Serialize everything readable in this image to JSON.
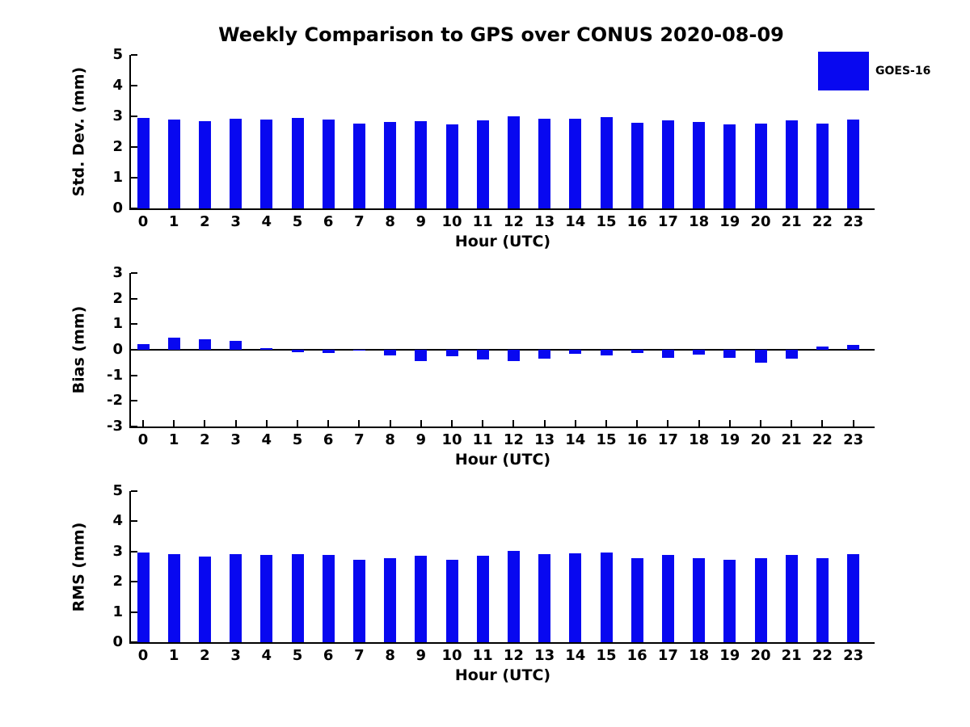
{
  "title": "Weekly Comparison to GPS over CONUS 2020-08-09",
  "legend": {
    "label": "GOES-16",
    "color": "#0808f0"
  },
  "colors": {
    "bar": "#0808f0",
    "axis": "#000000",
    "text": "#000000",
    "background": "#ffffff"
  },
  "chart_data": [
    {
      "type": "bar",
      "ylabel": "Std. Dev. (mm)",
      "xlabel": "Hour (UTC)",
      "ylim": [
        0,
        5
      ],
      "yticks": [
        0,
        1,
        2,
        3,
        4,
        5
      ],
      "grid": false,
      "legend_entries": [
        "GOES-16"
      ],
      "legend_position": "upper right outside plot",
      "categories": [
        "0",
        "1",
        "2",
        "3",
        "4",
        "5",
        "6",
        "7",
        "8",
        "9",
        "10",
        "11",
        "12",
        "13",
        "14",
        "15",
        "16",
        "17",
        "18",
        "19",
        "20",
        "21",
        "22",
        "23"
      ],
      "values": [
        2.96,
        2.89,
        2.83,
        2.91,
        2.89,
        2.94,
        2.89,
        2.76,
        2.81,
        2.83,
        2.73,
        2.86,
        2.99,
        2.92,
        2.93,
        2.98,
        2.78,
        2.88,
        2.81,
        2.74,
        2.76,
        2.86,
        2.76,
        2.9
      ]
    },
    {
      "type": "bar",
      "ylabel": "Bias (mm)",
      "xlabel": "Hour (UTC)",
      "ylim": [
        -3,
        3
      ],
      "yticks": [
        3,
        2,
        1,
        0,
        -1,
        -2,
        -3
      ],
      "grid": false,
      "zero_line": true,
      "categories": [
        "0",
        "1",
        "2",
        "3",
        "4",
        "5",
        "6",
        "7",
        "8",
        "9",
        "10",
        "11",
        "12",
        "13",
        "14",
        "15",
        "16",
        "17",
        "18",
        "19",
        "20",
        "21",
        "22",
        "23"
      ],
      "values": [
        0.23,
        0.48,
        0.42,
        0.34,
        0.05,
        -0.08,
        -0.13,
        -0.02,
        -0.21,
        -0.43,
        -0.26,
        -0.38,
        -0.45,
        -0.34,
        -0.17,
        -0.21,
        -0.14,
        -0.31,
        -0.19,
        -0.31,
        -0.49,
        -0.34,
        0.14,
        0.2
      ]
    },
    {
      "type": "bar",
      "ylabel": "RMS (mm)",
      "xlabel": "Hour (UTC)",
      "ylim": [
        0,
        5
      ],
      "yticks": [
        0,
        1,
        2,
        3,
        4,
        5
      ],
      "grid": false,
      "categories": [
        "0",
        "1",
        "2",
        "3",
        "4",
        "5",
        "6",
        "7",
        "8",
        "9",
        "10",
        "11",
        "12",
        "13",
        "14",
        "15",
        "16",
        "17",
        "18",
        "19",
        "20",
        "21",
        "22",
        "23"
      ],
      "values": [
        2.97,
        2.91,
        2.83,
        2.91,
        2.88,
        2.91,
        2.88,
        2.73,
        2.78,
        2.86,
        2.73,
        2.87,
        3.02,
        2.92,
        2.93,
        2.96,
        2.77,
        2.88,
        2.78,
        2.74,
        2.78,
        2.9,
        2.79,
        2.92
      ]
    }
  ]
}
